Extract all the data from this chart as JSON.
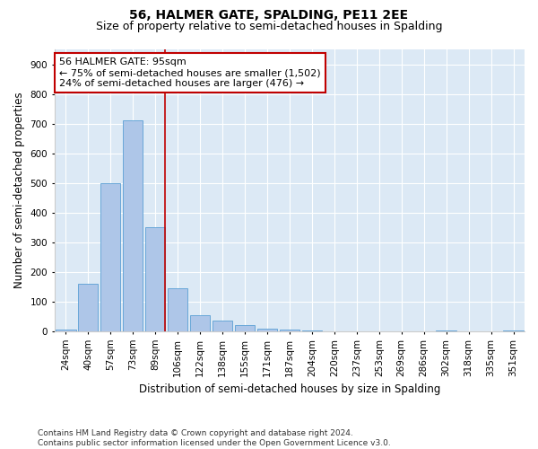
{
  "title": "56, HALMER GATE, SPALDING, PE11 2EE",
  "subtitle": "Size of property relative to semi-detached houses in Spalding",
  "xlabel": "Distribution of semi-detached houses by size in Spalding",
  "ylabel": "Number of semi-detached properties",
  "categories": [
    "24sqm",
    "40sqm",
    "57sqm",
    "73sqm",
    "89sqm",
    "106sqm",
    "122sqm",
    "138sqm",
    "155sqm",
    "171sqm",
    "187sqm",
    "204sqm",
    "220sqm",
    "237sqm",
    "253sqm",
    "269sqm",
    "286sqm",
    "302sqm",
    "318sqm",
    "335sqm",
    "351sqm"
  ],
  "values": [
    5,
    160,
    500,
    710,
    350,
    145,
    55,
    35,
    20,
    10,
    5,
    2,
    0,
    0,
    0,
    0,
    0,
    3,
    0,
    0,
    2
  ],
  "bar_color": "#aec6e8",
  "bar_edgecolor": "#5a9fd4",
  "highlight_index": 4,
  "highlight_color": "#c00000",
  "annotation_text": "56 HALMER GATE: 95sqm\n← 75% of semi-detached houses are smaller (1,502)\n24% of semi-detached houses are larger (476) →",
  "annotation_box_color": "#ffffff",
  "annotation_box_edgecolor": "#c00000",
  "ylim": [
    0,
    950
  ],
  "yticks": [
    0,
    100,
    200,
    300,
    400,
    500,
    600,
    700,
    800,
    900
  ],
  "footer": "Contains HM Land Registry data © Crown copyright and database right 2024.\nContains public sector information licensed under the Open Government Licence v3.0.",
  "background_color": "#dce9f5",
  "plot_background": "#dce9f5",
  "title_fontsize": 10,
  "subtitle_fontsize": 9,
  "tick_fontsize": 7.5,
  "label_fontsize": 8.5,
  "footer_fontsize": 6.5,
  "fig_width": 6.0,
  "fig_height": 5.0,
  "fig_dpi": 100
}
